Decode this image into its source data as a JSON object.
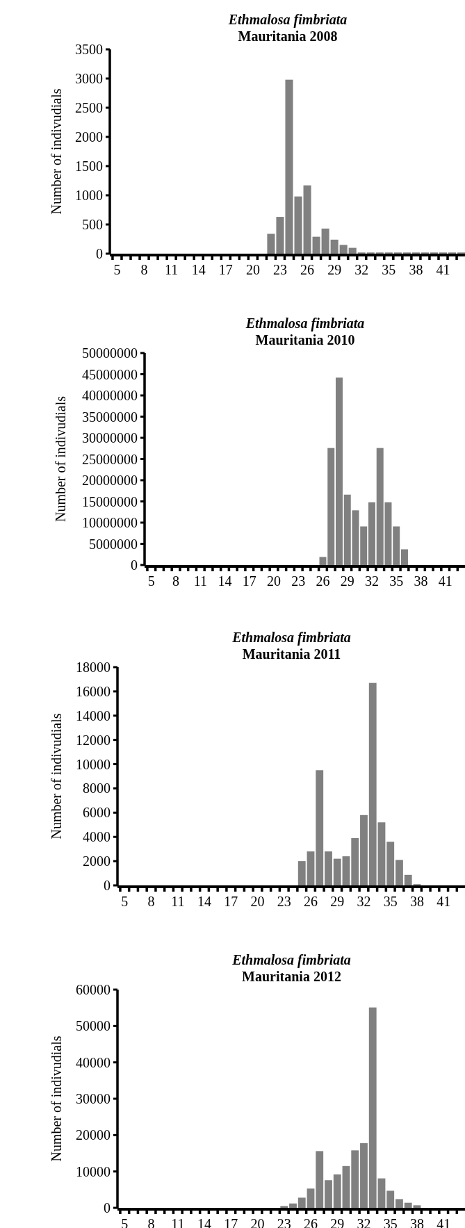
{
  "chart_data": [
    {
      "type": "bar",
      "title": "Ethmalosa fimbriata",
      "subtitle": "Mauritania 2008",
      "ylabel": "Number of indivudials",
      "categories": [
        "5",
        null,
        null,
        "8",
        null,
        null,
        "11",
        null,
        null,
        "14",
        null,
        null,
        "17",
        null,
        null,
        "20",
        null,
        null,
        "23",
        null,
        null,
        "26",
        null,
        null,
        "29",
        null,
        null,
        "32",
        null,
        null,
        "35",
        null,
        null,
        "38",
        null,
        null,
        "41",
        null,
        null
      ],
      "values": [
        0,
        0,
        0,
        0,
        0,
        0,
        0,
        0,
        0,
        0,
        0,
        0,
        0,
        0,
        0,
        0,
        0,
        340,
        630,
        2980,
        980,
        1170,
        290,
        430,
        240,
        150,
        100,
        20,
        20,
        20,
        20,
        20,
        20,
        20,
        20,
        20,
        20,
        20,
        20
      ],
      "color": "#808080",
      "ylim": [
        0,
        3500
      ],
      "yticks": [
        0,
        500,
        1000,
        1500,
        2000,
        2500,
        3000,
        3500
      ]
    },
    {
      "type": "bar",
      "title": "Ethmalosa fimbriata",
      "subtitle": "Mauritania 2010",
      "ylabel": "Number of indivudials",
      "categories": [
        "5",
        null,
        null,
        "8",
        null,
        null,
        "11",
        null,
        null,
        "14",
        null,
        null,
        "17",
        null,
        null,
        "20",
        null,
        null,
        "23",
        null,
        null,
        "26",
        null,
        null,
        "29",
        null,
        null,
        "32",
        null,
        null,
        "35",
        null,
        null,
        "38",
        null,
        null,
        "41",
        null,
        null
      ],
      "values": [
        0,
        0,
        0,
        0,
        0,
        0,
        0,
        0,
        0,
        0,
        0,
        0,
        0,
        0,
        0,
        0,
        0,
        0,
        0,
        0,
        0,
        1900000,
        27600000,
        44200000,
        16600000,
        12900000,
        9100000,
        14800000,
        27600000,
        14800000,
        9100000,
        3700000,
        0,
        0,
        0,
        0,
        0,
        0,
        0
      ],
      "color": "#808080",
      "ylim": [
        0,
        50000000
      ],
      "yticks": [
        0,
        5000000,
        10000000,
        15000000,
        20000000,
        25000000,
        30000000,
        35000000,
        40000000,
        45000000,
        50000000
      ]
    },
    {
      "type": "bar",
      "title": "Ethmalosa fimbriata",
      "subtitle": "Mauritania 2011",
      "ylabel": "Number of indivudials",
      "categories": [
        "5",
        null,
        null,
        "8",
        null,
        null,
        "11",
        null,
        null,
        "14",
        null,
        null,
        "17",
        null,
        null,
        "20",
        null,
        null,
        "23",
        null,
        null,
        "26",
        null,
        null,
        "29",
        null,
        null,
        "32",
        null,
        null,
        "35",
        null,
        null,
        "38",
        null,
        null,
        "41",
        null,
        null
      ],
      "values": [
        0,
        0,
        0,
        0,
        0,
        0,
        0,
        0,
        0,
        0,
        0,
        0,
        0,
        0,
        0,
        0,
        0,
        0,
        0,
        0,
        2000,
        2800,
        9500,
        2800,
        2200,
        2400,
        3900,
        5800,
        16700,
        5200,
        3600,
        2100,
        870,
        100,
        0,
        0,
        0,
        0,
        0
      ],
      "color": "#808080",
      "ylim": [
        0,
        18000
      ],
      "yticks": [
        0,
        2000,
        4000,
        6000,
        8000,
        10000,
        12000,
        14000,
        16000,
        18000
      ]
    },
    {
      "type": "bar",
      "title": "Ethmalosa fimbriata",
      "subtitle": "Mauritania 2012",
      "ylabel": "Number of indivudials",
      "categories": [
        "5",
        null,
        null,
        "8",
        null,
        null,
        "11",
        null,
        null,
        "14",
        null,
        null,
        "17",
        null,
        null,
        "20",
        null,
        null,
        "23",
        null,
        null,
        "26",
        null,
        null,
        "29",
        null,
        null,
        "32",
        null,
        null,
        "35",
        null,
        null,
        "38",
        null,
        null,
        "41",
        null,
        null
      ],
      "values": [
        0,
        0,
        0,
        0,
        0,
        0,
        0,
        0,
        0,
        0,
        0,
        0,
        0,
        0,
        0,
        0,
        0,
        0,
        500,
        1200,
        2800,
        5300,
        15600,
        7600,
        9200,
        11500,
        15800,
        17800,
        55100,
        8100,
        4700,
        2400,
        1400,
        700,
        0,
        0,
        0,
        0,
        0
      ],
      "color": "#808080",
      "ylim": [
        0,
        60000
      ],
      "yticks": [
        0,
        10000,
        20000,
        30000,
        40000,
        50000,
        60000
      ]
    }
  ]
}
